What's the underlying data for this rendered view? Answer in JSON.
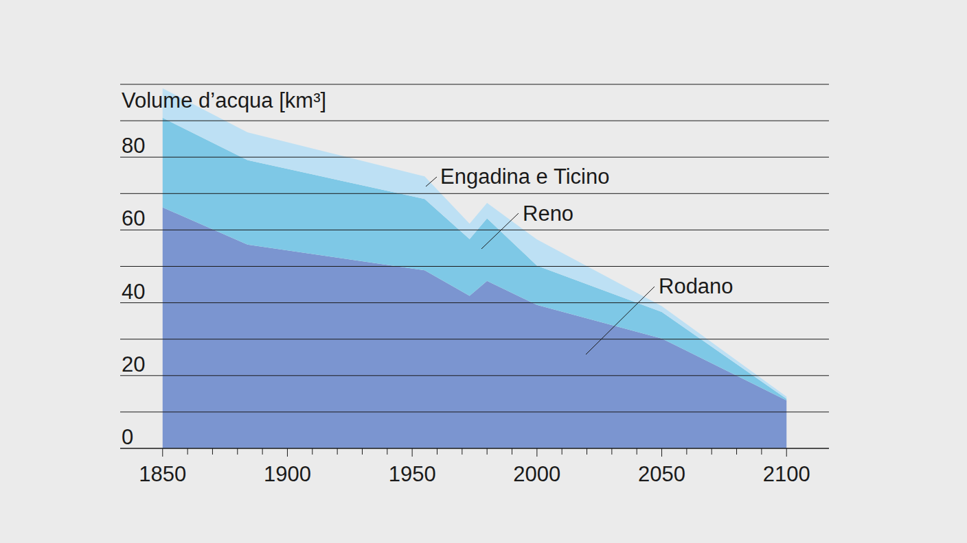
{
  "chart_data": {
    "type": "area",
    "stacked": true,
    "grid": true,
    "ylabel": "Volume d’acqua [km³]",
    "x": [
      1850,
      1884,
      1955,
      1973,
      1980,
      2000,
      2050,
      2100
    ],
    "xlim": [
      1833,
      2117
    ],
    "xticks": [
      1850,
      1900,
      1950,
      2000,
      2050,
      2100
    ],
    "ylim": [
      0,
      100
    ],
    "yticks": [
      0,
      20,
      40,
      60,
      80
    ],
    "series": [
      {
        "name": "Rodano",
        "color": "#7b95d0",
        "values": [
          66.2,
          56.0,
          48.9,
          41.9,
          46.0,
          39.4,
          30.2,
          13.2
        ]
      },
      {
        "name": "Reno",
        "color": "#7ec8e6",
        "values": [
          24.6,
          23.2,
          19.6,
          15.6,
          17.2,
          10.8,
          7.3,
          0.4
        ]
      },
      {
        "name": "Engadina e Ticino",
        "color": "#bde0f4",
        "values": [
          8.1,
          7.6,
          6.2,
          4.2,
          4.2,
          7.2,
          1.6,
          0.6
        ]
      }
    ]
  }
}
